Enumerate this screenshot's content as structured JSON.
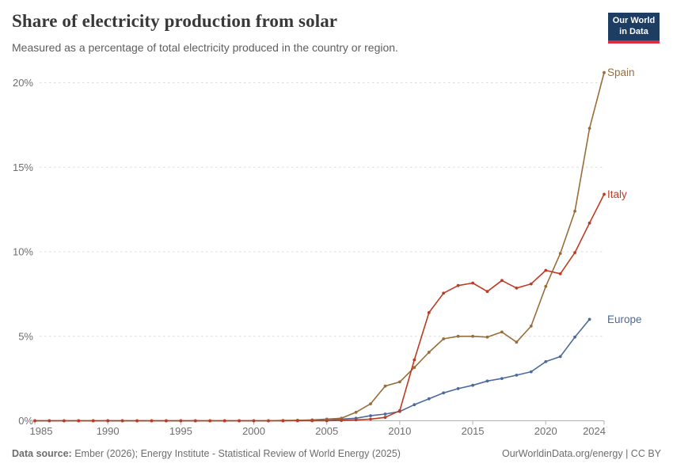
{
  "header": {
    "title": "Share of electricity production from solar",
    "subtitle": "Measured as a percentage of total electricity produced in the country or region.",
    "logo": {
      "line1": "Our World",
      "line2": "in Data",
      "bg_color": "#1d3d63",
      "accent_color": "#dc2c3e"
    }
  },
  "chart_data": {
    "type": "line",
    "title": "Share of electricity production from solar",
    "xlabel": "",
    "ylabel": "",
    "x_range": [
      1985,
      2024
    ],
    "ylim": [
      0,
      21
    ],
    "grid": "horizontal-dashed",
    "legend_position": "end-of-line-labels",
    "x_ticks": [
      {
        "value": 1985,
        "label": "1985"
      },
      {
        "value": 1990,
        "label": "1990"
      },
      {
        "value": 1995,
        "label": "1995"
      },
      {
        "value": 2000,
        "label": "2000"
      },
      {
        "value": 2005,
        "label": "2005"
      },
      {
        "value": 2010,
        "label": "2010"
      },
      {
        "value": 2015,
        "label": "2015"
      },
      {
        "value": 2020,
        "label": "2020"
      },
      {
        "value": 2024,
        "label": "2024"
      }
    ],
    "y_ticks": [
      {
        "value": 0,
        "label": "0%"
      },
      {
        "value": 5,
        "label": "5%"
      },
      {
        "value": 10,
        "label": "10%"
      },
      {
        "value": 15,
        "label": "15%"
      },
      {
        "value": 20,
        "label": "20%"
      }
    ],
    "series": [
      {
        "name": "Europe",
        "color": "#4c6a9c",
        "first_year": 1985,
        "values": [
          0,
          0,
          0,
          0,
          0,
          0,
          0,
          0,
          0,
          0,
          0,
          0,
          0,
          0,
          0,
          0,
          0,
          0,
          0.02,
          0.04,
          0.07,
          0.1,
          0.15,
          0.3,
          0.4,
          0.55,
          0.95,
          1.3,
          1.65,
          1.9,
          2.1,
          2.35,
          2.5,
          2.7,
          2.9,
          3.5,
          3.8,
          4.95,
          6.0
        ]
      },
      {
        "name": "Spain",
        "color": "#996d39",
        "first_year": 1985,
        "values": [
          0,
          0,
          0,
          0,
          0,
          0,
          0,
          0,
          0,
          0,
          0,
          0,
          0,
          0,
          0,
          0,
          0,
          0.02,
          0.03,
          0.05,
          0.1,
          0.15,
          0.5,
          1.0,
          2.05,
          2.3,
          3.15,
          4.05,
          4.85,
          5.0,
          5.0,
          4.95,
          5.25,
          4.65,
          5.6,
          7.95,
          9.9,
          12.4,
          17.3,
          20.6
        ]
      },
      {
        "name": "Italy",
        "color": "#bd3b24",
        "first_year": 1985,
        "values": [
          0,
          0,
          0,
          0,
          0,
          0,
          0,
          0,
          0,
          0,
          0,
          0,
          0,
          0,
          0,
          0,
          0,
          0,
          0,
          0,
          0,
          0.02,
          0.05,
          0.1,
          0.2,
          0.6,
          3.6,
          6.4,
          7.55,
          8.0,
          8.15,
          7.65,
          8.3,
          7.85,
          8.1,
          8.9,
          8.7,
          9.95,
          11.7,
          13.4
        ]
      }
    ]
  },
  "footer": {
    "source_label": "Data source:",
    "source_text": " Ember (2026); Energy Institute - Statistical Review of World Energy (2025)",
    "credit_link": "OurWorldinData.org/energy",
    "credit_suffix": " | CC BY"
  }
}
